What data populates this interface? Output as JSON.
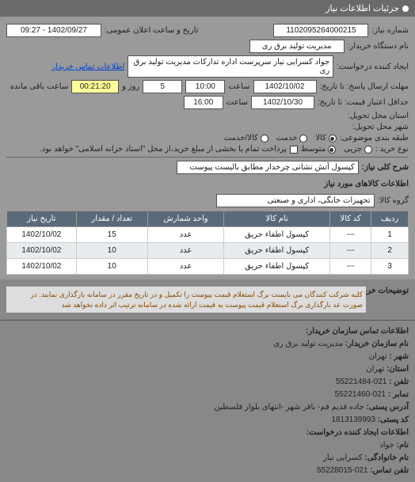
{
  "header": {
    "title": "جزئیات اطلاعات نیاز"
  },
  "form": {
    "num_label": "شماره نیاز:",
    "num_value": "1102095264000215",
    "date_label": "تاریخ و ساعت اعلان عمومی:",
    "date_value": "1402/09/27 - 09:27",
    "buyer_label": "نام دستگاه خریدار:",
    "buyer_value": "مدیریت تولید برق ری",
    "requester_label": "ایجاد کننده درخواست:",
    "requester_value": "جواد کسرایی نیار سرپرست اداره تدارکات مدیریت تولید برق ری",
    "contact_link": "اطلاعات تماس خریدار",
    "deadline_label": "مهلت ارسال پاسخ: تا تاریخ:",
    "deadline_date": "1402/10/02",
    "deadline_time_label": "ساعت",
    "deadline_time": "10:00",
    "days_label": "روز و",
    "days_value": "5",
    "remain_label": "ساعت باقی مانده",
    "remain_time": "00:21:20",
    "price_date_label": "حداقل اعتبار قیمت: تا تاریخ:",
    "price_date": "1402/10/30",
    "price_time_label": "ساعت",
    "price_time": "16:00",
    "delivery_state_label": "استان محل تحویل:",
    "delivery_city_label": "شهر محل تحویل:",
    "category_label": "طبقه بندی موضوعی:",
    "cat_goods": "کالا",
    "cat_service": "خدمت",
    "cat_both": "کالا/خدمت",
    "buy_type_label": "نوع خرید :",
    "buy_partial": "جزیی",
    "buy_medium": "متوسط",
    "note_checkbox": "پرداخت تمام یا بخشی از مبلغ خرید،از محل \"اسناد خزانه اسلامی\" خواهد بود."
  },
  "desc": {
    "label": "شرح کلی نیاز:",
    "value": "کپسول آتش نشانی چرخدار مطابق بالیست پیوست"
  },
  "items_section": {
    "title": "اطلاعات کالاهای مورد نیاز",
    "group_label": "گروه کالا:",
    "group_value": "تجهیزات خانگی، اداری و صنعتی"
  },
  "table": {
    "headers": [
      "ردیف",
      "کد کالا",
      "نام کالا",
      "واحد شمارش",
      "تعداد / مقدار",
      "تاریخ نیاز"
    ],
    "rows": [
      [
        "1",
        "---",
        "کپسول اطفاء حریق",
        "عدد",
        "15",
        "1402/10/02"
      ],
      [
        "2",
        "---",
        "کپسول اطفاء حریق",
        "عدد",
        "10",
        "1402/10/02"
      ],
      [
        "3",
        "---",
        "کپسول اطفاء حریق",
        "عدد",
        "10",
        "1402/10/02"
      ]
    ]
  },
  "notes": {
    "label": "توضیحات خریدار:",
    "text": "کلیه شرکت کنندگان می بایست برگ استعلام قیمت پیوست را تکمیل و در تاریخ مقرر در سامانه بارگذاری نمایند. در صورت عد بارگذاری برگ استعلام قیمت پیوست به قیمت ارائه شده در سامانه ترتیب اثر داده نخواهد شد"
  },
  "contact": {
    "title": "اطلاعات تماس سازمان خریدار:",
    "org_label": "نام سازمان خریدار:",
    "org_value": "مدیریت تولید برق ری",
    "city_label": "شهر :",
    "city_value": "تهران",
    "state_label": "استان:",
    "state_value": "تهران",
    "phone_label": "تلفن :",
    "phone_value": "021-55221484",
    "fax_label": "نمابر :",
    "fax_value": "021-55221460",
    "address_label": "آدرس پستی:",
    "address_value": "جاده قدیم قم- باقر شهر -انتهای بلوار فلسطین",
    "postal_label": "کد پستی:",
    "postal_value": "1813139993",
    "creator_title": "اطلاعات ایجاد کننده درخواست:",
    "name_label": "نام:",
    "name_value": "جواد",
    "family_label": "نام خانوادگی:",
    "family_value": "کسرایی نیار",
    "cphone_label": "تلفن تماس:",
    "cphone_value": "021-55228015"
  }
}
